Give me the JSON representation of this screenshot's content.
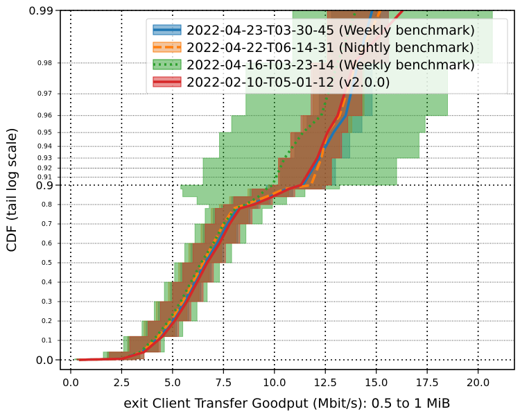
{
  "chart_data": {
    "type": "line",
    "xlabel": "exit Client Transfer Goodput (Mbit/s): 0.5 to 1 MiB",
    "ylabel": "CDF (tail log scale)",
    "xlim": [
      -0.5,
      21.8
    ],
    "x_ticks": [
      0.0,
      2.5,
      5.0,
      7.5,
      10.0,
      12.5,
      15.0,
      17.5,
      20.0
    ],
    "x_tick_labels": [
      "0.0",
      "2.5",
      "5.0",
      "7.5",
      "10.0",
      "12.5",
      "15.0",
      "17.5",
      "20.0"
    ],
    "y_scale": "tail-log (linear 0–0.9, log tail 0.9–0.99)",
    "ylim": [
      0.0,
      0.99
    ],
    "y_major_ticks": [
      0.0,
      0.9,
      0.99
    ],
    "y_major_labels": [
      "0.0",
      "0.9",
      "0.99"
    ],
    "y_minor_ticks": [
      0.1,
      0.2,
      0.3,
      0.4,
      0.5,
      0.6,
      0.7,
      0.8,
      0.91,
      0.92,
      0.93,
      0.94,
      0.95,
      0.96,
      0.97,
      0.98
    ],
    "y_minor_labels": [
      "0.1",
      "0.2",
      "0.3",
      "0.4",
      "0.5",
      "0.6",
      "0.7",
      "0.8",
      "0.91",
      "0.92",
      "0.93",
      "0.94",
      "0.95",
      "0.96",
      "0.97",
      "0.98"
    ],
    "grid": true,
    "legend_position": "top-right",
    "series": [
      {
        "name": "2022-04-23-T03-30-45 (Weekly benchmark)",
        "color": "#1f77b4",
        "style": "solid",
        "points": [
          [
            0.4,
            0.0
          ],
          [
            2.5,
            0.005
          ],
          [
            3.5,
            0.04
          ],
          [
            4.4,
            0.12
          ],
          [
            5.0,
            0.2
          ],
          [
            5.6,
            0.3
          ],
          [
            6.1,
            0.4
          ],
          [
            6.6,
            0.5
          ],
          [
            7.2,
            0.6
          ],
          [
            7.7,
            0.7
          ],
          [
            8.2,
            0.78
          ],
          [
            8.8,
            0.8
          ],
          [
            9.8,
            0.84
          ],
          [
            10.6,
            0.88
          ],
          [
            11.4,
            0.9
          ],
          [
            12.2,
            0.93
          ],
          [
            12.9,
            0.95
          ],
          [
            13.5,
            0.96
          ],
          [
            14.1,
            0.98
          ],
          [
            14.8,
            0.99
          ]
        ],
        "band": [
          [
            0.3,
            3.0
          ],
          [
            1.8,
            3.4
          ],
          [
            2.8,
            4.3
          ],
          [
            3.7,
            5.2
          ],
          [
            4.3,
            5.8
          ],
          [
            4.9,
            6.4
          ],
          [
            5.4,
            6.9
          ],
          [
            5.9,
            7.5
          ],
          [
            6.5,
            8.2
          ],
          [
            7.0,
            8.8
          ],
          [
            7.4,
            9.2
          ],
          [
            7.9,
            9.8
          ],
          [
            8.8,
            10.9
          ],
          [
            9.6,
            12.5
          ],
          [
            10.3,
            13.0
          ],
          [
            11.0,
            13.7
          ],
          [
            11.6,
            14.3
          ],
          [
            12.2,
            14.8
          ],
          [
            12.8,
            15.6
          ],
          [
            13.4,
            16.5
          ]
        ]
      },
      {
        "name": "2022-04-22-T06-14-31 (Nightly benchmark)",
        "color": "#ff7f0e",
        "style": "dashed",
        "points": [
          [
            0.4,
            0.0
          ],
          [
            2.5,
            0.005
          ],
          [
            3.5,
            0.04
          ],
          [
            4.3,
            0.12
          ],
          [
            4.9,
            0.2
          ],
          [
            5.5,
            0.3
          ],
          [
            6.0,
            0.4
          ],
          [
            6.5,
            0.5
          ],
          [
            7.0,
            0.6
          ],
          [
            7.5,
            0.7
          ],
          [
            8.0,
            0.78
          ],
          [
            8.6,
            0.8
          ],
          [
            9.6,
            0.84
          ],
          [
            10.5,
            0.88
          ],
          [
            11.8,
            0.9
          ],
          [
            12.3,
            0.93
          ],
          [
            12.6,
            0.95
          ],
          [
            13.2,
            0.96
          ],
          [
            14.0,
            0.98
          ],
          [
            15.2,
            0.99
          ]
        ],
        "band": [
          [
            0.3,
            3.0
          ],
          [
            1.8,
            3.4
          ],
          [
            2.8,
            4.3
          ],
          [
            3.6,
            5.1
          ],
          [
            4.2,
            5.7
          ],
          [
            4.8,
            6.3
          ],
          [
            5.3,
            6.8
          ],
          [
            5.8,
            7.4
          ],
          [
            6.4,
            8.1
          ],
          [
            6.9,
            8.7
          ],
          [
            7.3,
            9.1
          ],
          [
            7.8,
            9.7
          ],
          [
            8.7,
            10.7
          ],
          [
            9.7,
            12.3
          ],
          [
            10.2,
            12.8
          ],
          [
            10.8,
            13.2
          ],
          [
            11.4,
            13.8
          ],
          [
            11.9,
            14.4
          ],
          [
            12.6,
            15.2
          ],
          [
            13.3,
            16.2
          ]
        ]
      },
      {
        "name": "2022-04-16-T03-23-14 (Weekly benchmark)",
        "color": "#2ca02c",
        "style": "dotted",
        "points": [
          [
            0.4,
            0.0
          ],
          [
            2.5,
            0.005
          ],
          [
            3.4,
            0.04
          ],
          [
            4.2,
            0.12
          ],
          [
            4.8,
            0.2
          ],
          [
            5.4,
            0.3
          ],
          [
            5.9,
            0.4
          ],
          [
            6.4,
            0.5
          ],
          [
            7.0,
            0.6
          ],
          [
            7.5,
            0.7
          ],
          [
            8.1,
            0.78
          ],
          [
            8.6,
            0.8
          ],
          [
            9.2,
            0.84
          ],
          [
            9.6,
            0.88
          ],
          [
            9.9,
            0.9
          ],
          [
            10.5,
            0.93
          ],
          [
            11.4,
            0.95
          ],
          [
            12.3,
            0.96
          ],
          [
            13.1,
            0.98
          ],
          [
            14.0,
            0.99
          ]
        ],
        "band": [
          [
            0.2,
            3.2
          ],
          [
            1.6,
            3.6
          ],
          [
            2.6,
            4.6
          ],
          [
            3.5,
            5.5
          ],
          [
            4.1,
            6.2
          ],
          [
            4.6,
            6.7
          ],
          [
            5.1,
            7.3
          ],
          [
            5.6,
            7.9
          ],
          [
            6.1,
            8.6
          ],
          [
            6.6,
            9.4
          ],
          [
            6.8,
            9.9
          ],
          [
            6.2,
            10.6
          ],
          [
            5.5,
            11.5
          ],
          [
            5.4,
            13.2
          ],
          [
            6.5,
            16.0
          ],
          [
            7.3,
            17.1
          ],
          [
            7.9,
            17.4
          ],
          [
            8.6,
            18.5
          ],
          [
            10.9,
            20.7
          ],
          [
            13.0,
            21.6
          ]
        ]
      },
      {
        "name": "2022-02-10-T05-01-12 (v2.0.0)",
        "color": "#d62728",
        "style": "solid",
        "points": [
          [
            0.4,
            0.0
          ],
          [
            2.5,
            0.005
          ],
          [
            3.6,
            0.04
          ],
          [
            4.5,
            0.12
          ],
          [
            5.1,
            0.2
          ],
          [
            5.7,
            0.3
          ],
          [
            6.2,
            0.4
          ],
          [
            6.7,
            0.5
          ],
          [
            7.3,
            0.6
          ],
          [
            7.8,
            0.7
          ],
          [
            8.3,
            0.78
          ],
          [
            9.0,
            0.8
          ],
          [
            9.9,
            0.84
          ],
          [
            10.7,
            0.88
          ],
          [
            11.3,
            0.9
          ],
          [
            12.1,
            0.93
          ],
          [
            12.6,
            0.95
          ],
          [
            13.1,
            0.96
          ],
          [
            13.9,
            0.98
          ],
          [
            16.3,
            0.99
          ]
        ],
        "band": [
          [
            0.3,
            3.2
          ],
          [
            1.9,
            3.6
          ],
          [
            2.9,
            4.4
          ],
          [
            3.8,
            5.3
          ],
          [
            4.4,
            5.9
          ],
          [
            5.0,
            6.5
          ],
          [
            5.5,
            7.0
          ],
          [
            6.0,
            7.6
          ],
          [
            6.6,
            8.3
          ],
          [
            7.1,
            8.9
          ],
          [
            7.5,
            9.3
          ],
          [
            8.0,
            9.9
          ],
          [
            8.9,
            11.0
          ],
          [
            9.8,
            12.5
          ],
          [
            10.2,
            12.8
          ],
          [
            10.8,
            13.3
          ],
          [
            11.3,
            13.6
          ],
          [
            11.8,
            14.3
          ],
          [
            12.6,
            15.6
          ],
          [
            14.6,
            18.9
          ]
        ]
      }
    ]
  }
}
